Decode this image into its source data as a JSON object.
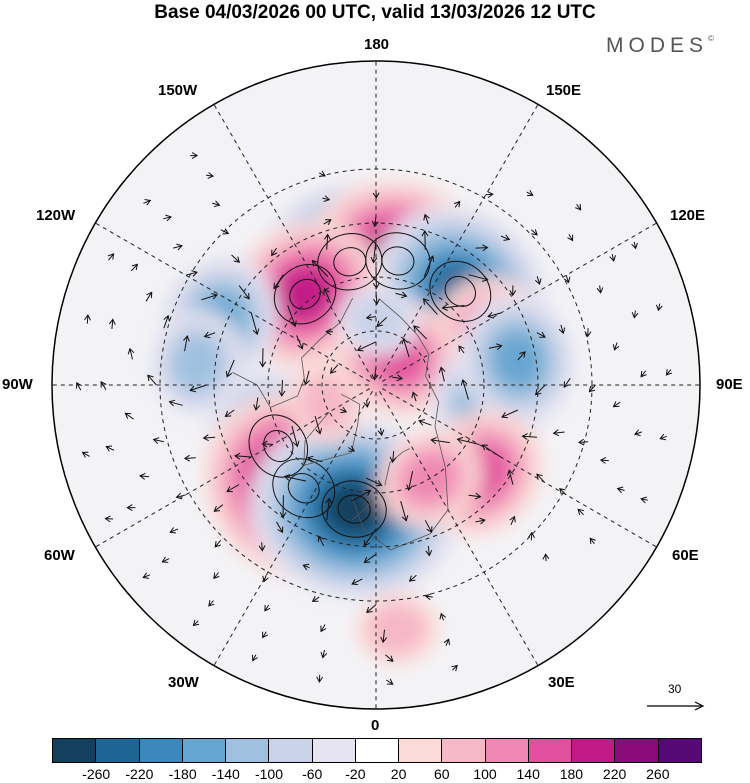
{
  "title": "Base 04/03/2026 00 UTC, valid 13/03/2026 12 UTC",
  "brand": "MODES",
  "brand_mark": "©",
  "longitude_labels": {
    "n180": "180",
    "w150": "150W",
    "e150": "150E",
    "w120": "120W",
    "e120": "120E",
    "w90": "90W",
    "e90": "90E",
    "w60": "60W",
    "e60": "60E",
    "w30": "30W",
    "e30": "30E",
    "s0": "0"
  },
  "wind_scale": {
    "label": "30"
  },
  "colorbar": {
    "ticks": [
      "-260",
      "-220",
      "-180",
      "-140",
      "-100",
      "-60",
      "-20",
      "20",
      "60",
      "100",
      "140",
      "180",
      "220",
      "260"
    ],
    "colors": [
      "#13415d",
      "#1f6593",
      "#3b88bd",
      "#67a6d1",
      "#9fc1df",
      "#c9d2e8",
      "#e6e4f1",
      "#ffffff",
      "#fbdad7",
      "#f6b7c6",
      "#ef88b4",
      "#e2509d",
      "#c21b87",
      "#8b0b7a",
      "#560874"
    ]
  },
  "anomalies": [
    {
      "kind": "neg",
      "level": 6,
      "lon": -168,
      "lat": 55
    },
    {
      "kind": "pos",
      "level": 6,
      "lon": 170,
      "lat": 55
    },
    {
      "kind": "neg",
      "level": 6,
      "lon": 138,
      "lat": 55
    },
    {
      "kind": "pos",
      "level": 5,
      "lon": -142,
      "lat": 58
    },
    {
      "kind": "neg",
      "level": 4,
      "lon": -112,
      "lat": 43
    },
    {
      "kind": "neg",
      "level": 3,
      "lon": -97,
      "lat": 40
    },
    {
      "kind": "neg",
      "level": 5,
      "lon": -58,
      "lat": 58
    },
    {
      "kind": "pos",
      "level": 8,
      "lon": -35,
      "lat": 55
    },
    {
      "kind": "neg",
      "level": 7,
      "lon": -10,
      "lat": 55
    },
    {
      "kind": "pos",
      "level": 4,
      "lon": 110,
      "lat": 55
    },
    {
      "kind": "pos",
      "level": 4,
      "lon": 145,
      "lat": 80
    },
    {
      "kind": "neg",
      "level": 4,
      "lon": 80,
      "lat": 58
    },
    {
      "kind": "neg",
      "level": 4,
      "lon": 100,
      "lat": 50
    },
    {
      "kind": "pos",
      "level": 4,
      "lon": 50,
      "lat": 52
    },
    {
      "kind": "pos",
      "level": 3,
      "lon": 30,
      "lat": 60
    },
    {
      "kind": "pos",
      "level": 2,
      "lon": 5,
      "lat": 22
    },
    {
      "kind": "neg",
      "level": 2,
      "lon": 178,
      "lat": 72
    },
    {
      "kind": "pos",
      "level": 2,
      "lon": -70,
      "lat": 75
    }
  ]
}
